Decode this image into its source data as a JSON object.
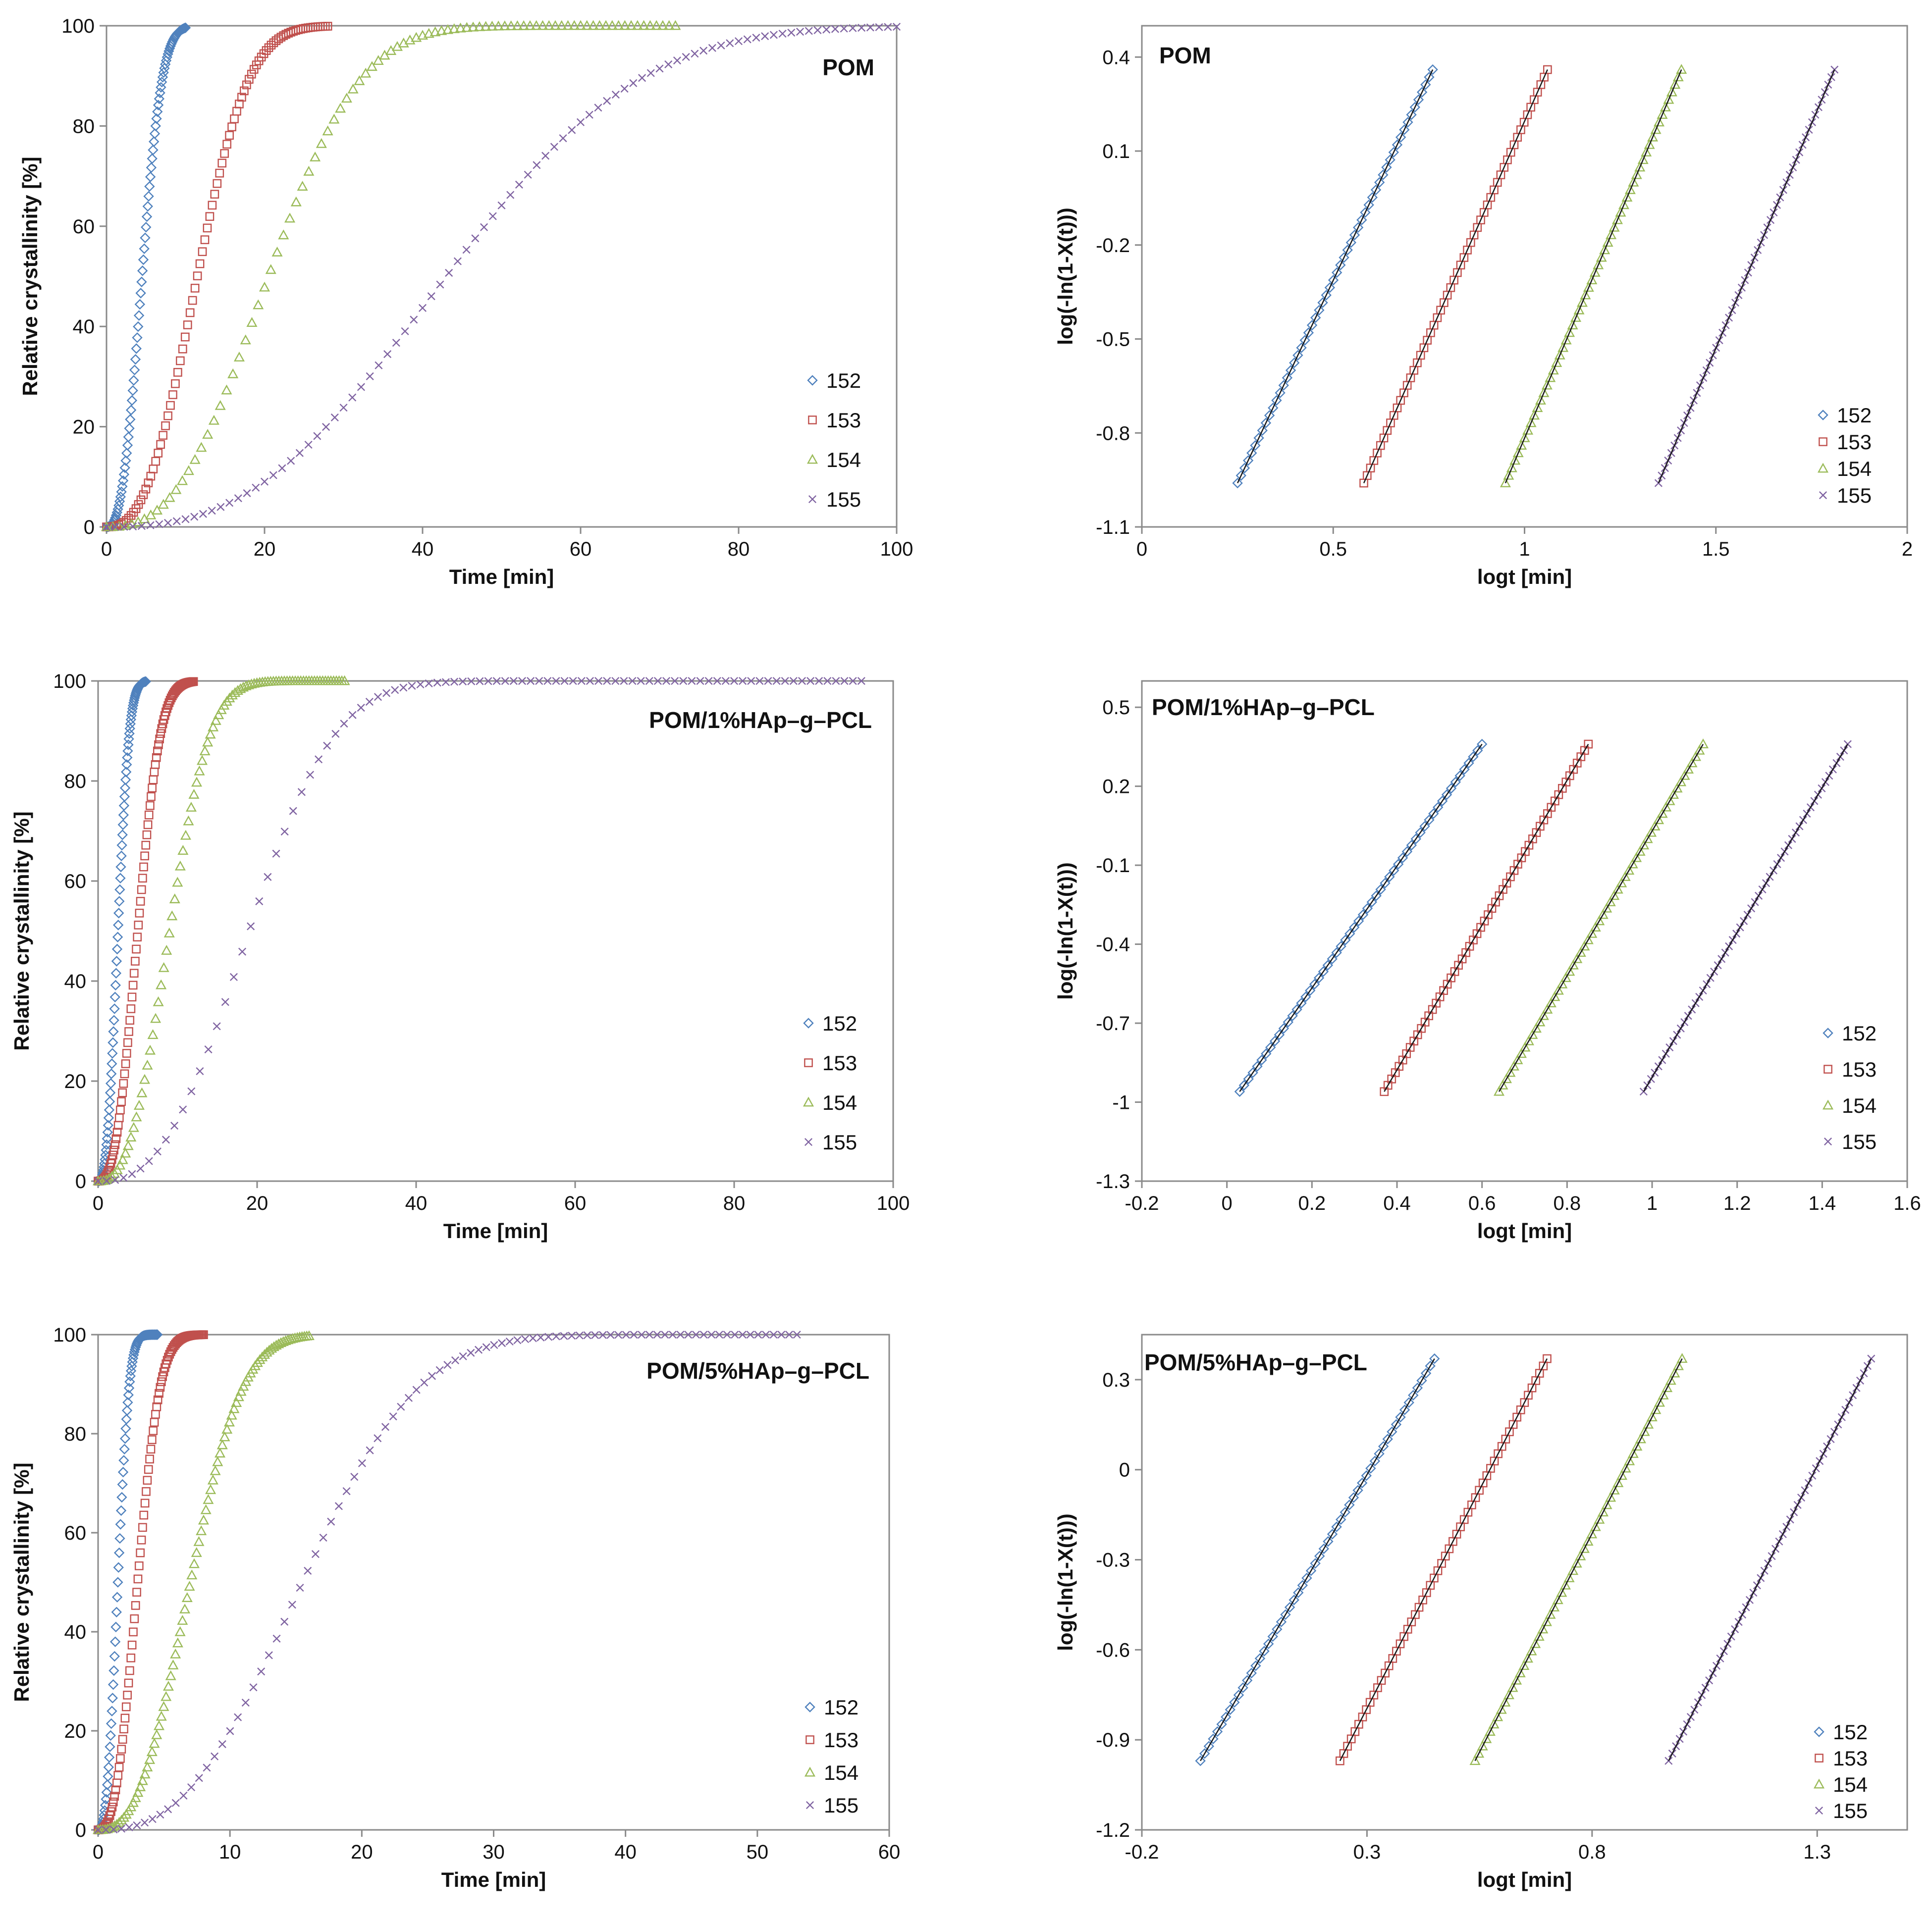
{
  "figure": {
    "legend_entries": [
      "152",
      "153",
      "154",
      "155"
    ],
    "series_colors": {
      "152": "#4f81bd",
      "153": "#c0504d",
      "154": "#9bbb59",
      "155": "#8064a2"
    },
    "marker_icons": {
      "152": "diamond-icon",
      "153": "square-icon",
      "154": "triangle-icon",
      "155": "cross-icon"
    }
  },
  "chart_data": [
    {
      "type": "scatter",
      "title": "POM",
      "xlabel": "Time [min]",
      "ylabel": "Relative crystallinity  [%]",
      "xlim": [
        0,
        100
      ],
      "ylim": [
        0,
        100
      ],
      "xticks": [
        "0",
        "20",
        "40",
        "60",
        "80",
        "100"
      ],
      "yticks": [
        "0",
        "20",
        "40",
        "60",
        "80",
        "100"
      ],
      "legend_position": "right",
      "model": "avrami",
      "series": [
        {
          "name": "152",
          "t_half": 4.5,
          "n": 2.6,
          "t_end": 10
        },
        {
          "name": "153",
          "t_half": 11.5,
          "n": 2.6,
          "t_end": 28
        },
        {
          "name": "154",
          "t_half": 20.5,
          "n": 2.6,
          "t_end": 72
        },
        {
          "name": "155",
          "t_half": 43,
          "n": 2.6,
          "t_end": 100
        }
      ]
    },
    {
      "type": "scatter",
      "title": "POM",
      "xlabel": "logt [min]",
      "ylabel": "log(-ln(1-X(t)))",
      "xlim": [
        0,
        2
      ],
      "ylim": [
        -1.1,
        0.5
      ],
      "xticks": [
        "0",
        "0.5",
        "1",
        "1.5",
        "2"
      ],
      "xtick_values": [
        0,
        0.5,
        1,
        1.5,
        2
      ],
      "yticks": [
        "-1.1",
        "-0.8",
        "-0.5",
        "-0.2",
        "0.1",
        "0.4"
      ],
      "ytick_values": [
        -1.1,
        -0.8,
        -0.5,
        -0.2,
        0.1,
        0.4
      ],
      "legend_position": "bottom-right",
      "model": "linear",
      "series": [
        {
          "name": "152",
          "x": [
            0.25,
            0.76
          ],
          "y": [
            -0.96,
            0.36
          ]
        },
        {
          "name": "153",
          "x": [
            0.58,
            1.06
          ],
          "y": [
            -0.96,
            0.36
          ]
        },
        {
          "name": "154",
          "x": [
            0.95,
            1.41
          ],
          "y": [
            -0.96,
            0.36
          ]
        },
        {
          "name": "155",
          "x": [
            1.35,
            1.81
          ],
          "y": [
            -0.96,
            0.36
          ]
        }
      ]
    },
    {
      "type": "scatter",
      "title": "POM/1%HAp–g–PCL",
      "xlabel": "Time [min]",
      "ylabel": "Relative crystallinity [%]",
      "xlim": [
        0,
        100
      ],
      "ylim": [
        0,
        100
      ],
      "xticks": [
        "0",
        "20",
        "40",
        "60",
        "80",
        "100"
      ],
      "yticks": [
        "0",
        "20",
        "40",
        "60",
        "80",
        "100"
      ],
      "legend_position": "right",
      "model": "avrami",
      "series": [
        {
          "name": "152",
          "t_half": 2.5,
          "n": 2.6,
          "t_end": 6
        },
        {
          "name": "153",
          "t_half": 5,
          "n": 2.6,
          "t_end": 12
        },
        {
          "name": "154",
          "t_half": 9,
          "n": 2.6,
          "t_end": 31
        },
        {
          "name": "155",
          "t_half": 19,
          "n": 2.6,
          "t_end": 96
        }
      ]
    },
    {
      "type": "scatter",
      "title": "POM/1%HAp–g–PCL",
      "xlabel": "logt [min]",
      "ylabel": "log(-ln(1-X(t)))",
      "xlim": [
        -0.2,
        1.6
      ],
      "ylim": [
        -1.3,
        0.6
      ],
      "xticks": [
        "-0.2",
        "0",
        "0.2",
        "0.4",
        "0.6",
        "0.8",
        "1",
        "1.2",
        "1.4",
        "1.6"
      ],
      "xtick_values": [
        -0.2,
        0,
        0.2,
        0.4,
        0.6,
        0.8,
        1,
        1.2,
        1.4,
        1.6
      ],
      "yticks": [
        "-1.3",
        "-1",
        "-0.7",
        "-0.4",
        "-0.1",
        "0.2",
        "0.5"
      ],
      "ytick_values": [
        -1.3,
        -1,
        -0.7,
        -0.4,
        -0.1,
        0.2,
        0.5
      ],
      "legend_position": "bottom-right",
      "model": "linear",
      "series": [
        {
          "name": "152",
          "x": [
            0.03,
            0.6
          ],
          "y": [
            -0.96,
            0.36
          ]
        },
        {
          "name": "153",
          "x": [
            0.37,
            0.85
          ],
          "y": [
            -0.96,
            0.36
          ]
        },
        {
          "name": "154",
          "x": [
            0.64,
            1.12
          ],
          "y": [
            -0.96,
            0.36
          ]
        },
        {
          "name": "155",
          "x": [
            0.98,
            1.46
          ],
          "y": [
            -0.96,
            0.36
          ]
        }
      ]
    },
    {
      "type": "scatter",
      "title": "POM/5%HAp–g–PCL",
      "xlabel": "Time [min]",
      "ylabel": "Relative crystallinity [%]",
      "xlim": [
        0,
        60
      ],
      "ylim": [
        0,
        100
      ],
      "xticks": [
        "0",
        "10",
        "20",
        "30",
        "40",
        "50",
        "60"
      ],
      "yticks": [
        "0",
        "20",
        "40",
        "60",
        "80",
        "100"
      ],
      "legend_position": "right",
      "model": "avrami",
      "series": [
        {
          "name": "152",
          "t_half": 1.5,
          "n": 2.6,
          "t_end": 4.5
        },
        {
          "name": "153",
          "t_half": 3,
          "n": 2.6,
          "t_end": 8
        },
        {
          "name": "154",
          "t_half": 7,
          "n": 2.6,
          "t_end": 16
        },
        {
          "name": "155",
          "t_half": 15.5,
          "n": 2.6,
          "t_end": 53
        }
      ]
    },
    {
      "type": "scatter",
      "title": "POM/5%HAp–g–PCL",
      "xlabel": "logt [min]",
      "ylabel": "log(-ln(1-X(t)))",
      "xlim": [
        -0.2,
        1.5
      ],
      "ylim": [
        -1.2,
        0.45
      ],
      "xticks": [
        "-0.2",
        "0.3",
        "0.8",
        "1.3"
      ],
      "xtick_values": [
        -0.2,
        0.3,
        0.8,
        1.3
      ],
      "yticks": [
        "-1.2",
        "-0.9",
        "-0.6",
        "-0.3",
        "0",
        "0.3"
      ],
      "ytick_values": [
        -1.2,
        -0.9,
        -0.6,
        -0.3,
        0,
        0.3
      ],
      "legend_position": "bottom-right",
      "model": "linear",
      "series": [
        {
          "name": "152",
          "x": [
            -0.07,
            0.45
          ],
          "y": [
            -0.97,
            0.37
          ]
        },
        {
          "name": "153",
          "x": [
            0.24,
            0.7
          ],
          "y": [
            -0.97,
            0.37
          ]
        },
        {
          "name": "154",
          "x": [
            0.54,
            1.0
          ],
          "y": [
            -0.97,
            0.37
          ]
        },
        {
          "name": "155",
          "x": [
            0.97,
            1.42
          ],
          "y": [
            -0.97,
            0.37
          ]
        }
      ]
    }
  ]
}
